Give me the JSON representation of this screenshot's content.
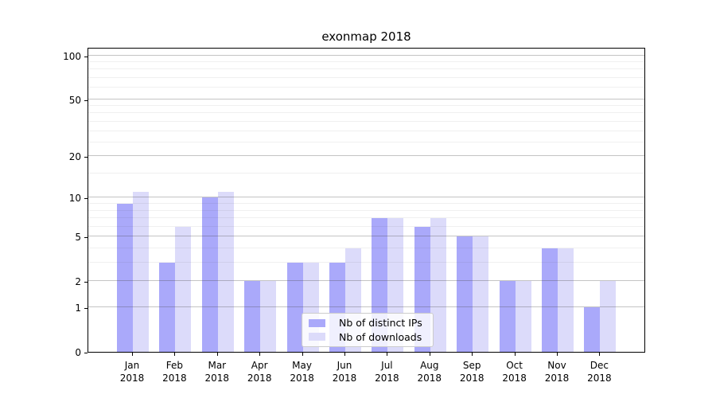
{
  "chart_data": {
    "type": "bar",
    "title": "exonmap 2018",
    "categories": [
      "Jan",
      "Feb",
      "Mar",
      "Apr",
      "May",
      "Jun",
      "Jul",
      "Aug",
      "Sep",
      "Oct",
      "Nov",
      "Dec"
    ],
    "category_year": "2018",
    "series": [
      {
        "name": "Nb of distinct IPs",
        "slug": "distinct-ips",
        "color": "#aaa9fa",
        "values": [
          9,
          3,
          10,
          2,
          3,
          3,
          7,
          6,
          5,
          2,
          4,
          1
        ]
      },
      {
        "name": "Nb of downloads",
        "slug": "downloads",
        "color": "#dcdbfa",
        "values": [
          11,
          6,
          11,
          2,
          3,
          4,
          7,
          7,
          5,
          2,
          4,
          2
        ]
      }
    ],
    "xlabel": "",
    "ylabel": "",
    "yscale": "log1p",
    "ylim": [
      0,
      114
    ],
    "yticks": [
      0,
      1,
      2,
      5,
      10,
      20,
      50,
      100
    ],
    "yticks_minor": [
      3,
      4,
      6,
      7,
      8,
      9,
      15,
      25,
      30,
      35,
      40,
      45,
      60,
      70,
      80,
      90
    ],
    "grid": "horizontal, drawn over bars",
    "legend_position": "lower center"
  },
  "colors": {
    "major_grid": "rgba(70,70,70,0.32)",
    "minor_grid": "rgba(70,70,70,0.08)",
    "spine": "#000000",
    "background": "#ffffff",
    "text": "#000000"
  }
}
